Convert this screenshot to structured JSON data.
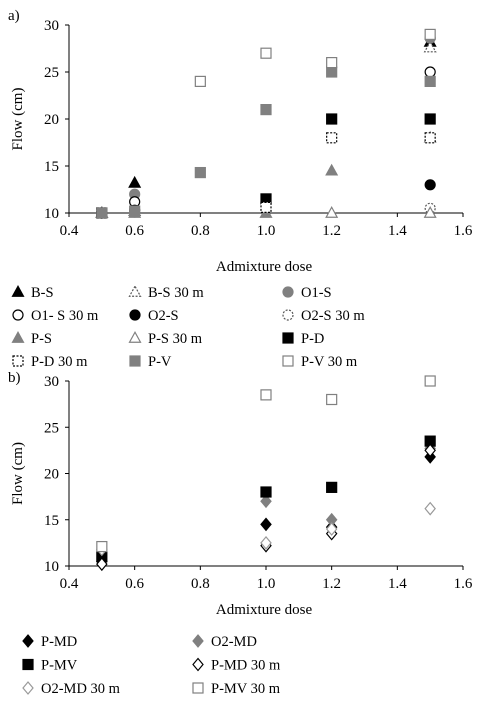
{
  "chart_data": [
    {
      "type": "scatter",
      "panel_label": "a)",
      "xlabel": "Admixture dose",
      "ylabel": "Flow (cm)",
      "xlim": [
        0.4,
        1.6
      ],
      "ylim": [
        10,
        30
      ],
      "xticks": [
        0.4,
        0.6,
        0.8,
        1.0,
        1.2,
        1.4,
        1.6
      ],
      "xtick_labels": [
        "0.4",
        "0.6",
        "0.8",
        "1.0",
        "1.2",
        "1.4",
        "1.6"
      ],
      "yticks": [
        10,
        15,
        20,
        25,
        30
      ],
      "ytick_labels": [
        "10",
        "15",
        "20",
        "25",
        "30"
      ],
      "grid": false,
      "legend_position": "bottom",
      "legend_columns": 3,
      "series": [
        {
          "name": "B-S",
          "marker": "triangle",
          "fill": "#000000",
          "stroke": "#000000",
          "dash": false,
          "points": [
            [
              0.5,
              10
            ],
            [
              0.6,
              13.2
            ],
            [
              1.5,
              28.2
            ]
          ]
        },
        {
          "name": "B-S 30 m",
          "marker": "triangle",
          "fill": "#ffffff",
          "stroke": "#555555",
          "dash": true,
          "points": [
            [
              0.5,
              10
            ],
            [
              0.6,
              10.2
            ],
            [
              1.5,
              27.6
            ]
          ]
        },
        {
          "name": "O1-S",
          "marker": "circle",
          "fill": "#808080",
          "stroke": "#808080",
          "dash": false,
          "points": [
            [
              0.5,
              10
            ],
            [
              0.6,
              12
            ],
            [
              1.5,
              28.6
            ]
          ]
        },
        {
          "name": "O1- S 30 m",
          "marker": "circle",
          "fill": "#ffffff",
          "stroke": "#000000",
          "dash": false,
          "points": [
            [
              0.5,
              10
            ],
            [
              0.6,
              11.2
            ],
            [
              1.5,
              25
            ]
          ]
        },
        {
          "name": "O2-S",
          "marker": "circle",
          "fill": "#000000",
          "stroke": "#000000",
          "dash": false,
          "points": [
            [
              0.5,
              10
            ],
            [
              0.6,
              10.3
            ],
            [
              1.5,
              13
            ]
          ]
        },
        {
          "name": "O2-S 30 m",
          "marker": "circle",
          "fill": "#ffffff",
          "stroke": "#555555",
          "dash": true,
          "points": [
            [
              0.5,
              10
            ],
            [
              0.6,
              10.1
            ],
            [
              1.5,
              10.5
            ]
          ]
        },
        {
          "name": "P-S",
          "marker": "triangle",
          "fill": "#808080",
          "stroke": "#808080",
          "dash": false,
          "points": [
            [
              0.5,
              10
            ],
            [
              0.6,
              10
            ],
            [
              1.0,
              10
            ],
            [
              1.2,
              14.5
            ],
            [
              1.5,
              18
            ]
          ]
        },
        {
          "name": "P-S 30 m",
          "marker": "triangle",
          "fill": "#ffffff",
          "stroke": "#808080",
          "dash": false,
          "points": [
            [
              0.5,
              10
            ],
            [
              1.2,
              10
            ],
            [
              1.5,
              10
            ]
          ]
        },
        {
          "name": "P-D",
          "marker": "square",
          "fill": "#000000",
          "stroke": "#000000",
          "dash": false,
          "points": [
            [
              0.5,
              10
            ],
            [
              1.0,
              11.5
            ],
            [
              1.2,
              20
            ],
            [
              1.5,
              20
            ]
          ]
        },
        {
          "name": "P-D 30 m",
          "marker": "square",
          "fill": "#ffffff",
          "stroke": "#000000",
          "dash": true,
          "points": [
            [
              0.5,
              10
            ],
            [
              1.0,
              10.6
            ],
            [
              1.2,
              18
            ],
            [
              1.5,
              18
            ]
          ]
        },
        {
          "name": "P-V",
          "marker": "square",
          "fill": "#808080",
          "stroke": "#808080",
          "dash": false,
          "points": [
            [
              0.5,
              10
            ],
            [
              0.6,
              10.2
            ],
            [
              0.8,
              14.3
            ],
            [
              1.0,
              21
            ],
            [
              1.2,
              25
            ],
            [
              1.5,
              24
            ]
          ]
        },
        {
          "name": "P-V 30 m",
          "marker": "square",
          "fill": "#ffffff",
          "stroke": "#808080",
          "dash": false,
          "points": [
            [
              0.8,
              24
            ],
            [
              1.0,
              27
            ],
            [
              1.2,
              26
            ],
            [
              1.5,
              29
            ]
          ]
        }
      ]
    },
    {
      "type": "scatter",
      "panel_label": "b)",
      "xlabel": "Admixture dose",
      "ylabel": "Flow (cm)",
      "xlim": [
        0.4,
        1.6
      ],
      "ylim": [
        10,
        30
      ],
      "xticks": [
        0.4,
        0.6,
        0.8,
        1.0,
        1.2,
        1.4,
        1.6
      ],
      "xtick_labels": [
        "0.4",
        "0.6",
        "0.8",
        "1.0",
        "1.2",
        "1.4",
        "1.6"
      ],
      "yticks": [
        10,
        15,
        20,
        25,
        30
      ],
      "ytick_labels": [
        "10",
        "15",
        "20",
        "25",
        "30"
      ],
      "grid": false,
      "legend_position": "bottom",
      "legend_columns": 2,
      "series": [
        {
          "name": "P-MD",
          "marker": "diamond",
          "fill": "#000000",
          "stroke": "#000000",
          "dash": false,
          "points": [
            [
              0.5,
              10.5
            ],
            [
              1.0,
              14.5
            ],
            [
              1.2,
              14.2
            ],
            [
              1.5,
              21.8
            ]
          ]
        },
        {
          "name": "O2-MD",
          "marker": "diamond",
          "fill": "#808080",
          "stroke": "#808080",
          "dash": false,
          "points": [
            [
              0.5,
              11.5
            ],
            [
              1.0,
              17
            ],
            [
              1.2,
              15
            ],
            [
              1.5,
              22.7
            ]
          ]
        },
        {
          "name": "P-MV",
          "marker": "square",
          "fill": "#000000",
          "stroke": "#000000",
          "dash": false,
          "points": [
            [
              0.5,
              11
            ],
            [
              1.0,
              18
            ],
            [
              1.2,
              18.5
            ],
            [
              1.5,
              23.5
            ]
          ]
        },
        {
          "name": "P-MD 30 m",
          "marker": "diamond",
          "fill": "#ffffff",
          "stroke": "#000000",
          "dash": false,
          "points": [
            [
              0.5,
              10.2
            ],
            [
              1.0,
              12.2
            ],
            [
              1.2,
              13.5
            ],
            [
              1.5,
              22.5
            ]
          ]
        },
        {
          "name": "O2-MD 30 m",
          "marker": "diamond",
          "fill": "#ffffff",
          "stroke": "#999999",
          "dash": false,
          "points": [
            [
              0.5,
              11.8
            ],
            [
              1.0,
              12.5
            ],
            [
              1.2,
              14
            ],
            [
              1.5,
              16.2
            ]
          ]
        },
        {
          "name": "P-MV 30 m",
          "marker": "square",
          "fill": "#ffffff",
          "stroke": "#808080",
          "dash": false,
          "points": [
            [
              0.5,
              12.1
            ],
            [
              1.0,
              28.5
            ],
            [
              1.2,
              28
            ],
            [
              1.5,
              30
            ]
          ]
        }
      ]
    }
  ]
}
